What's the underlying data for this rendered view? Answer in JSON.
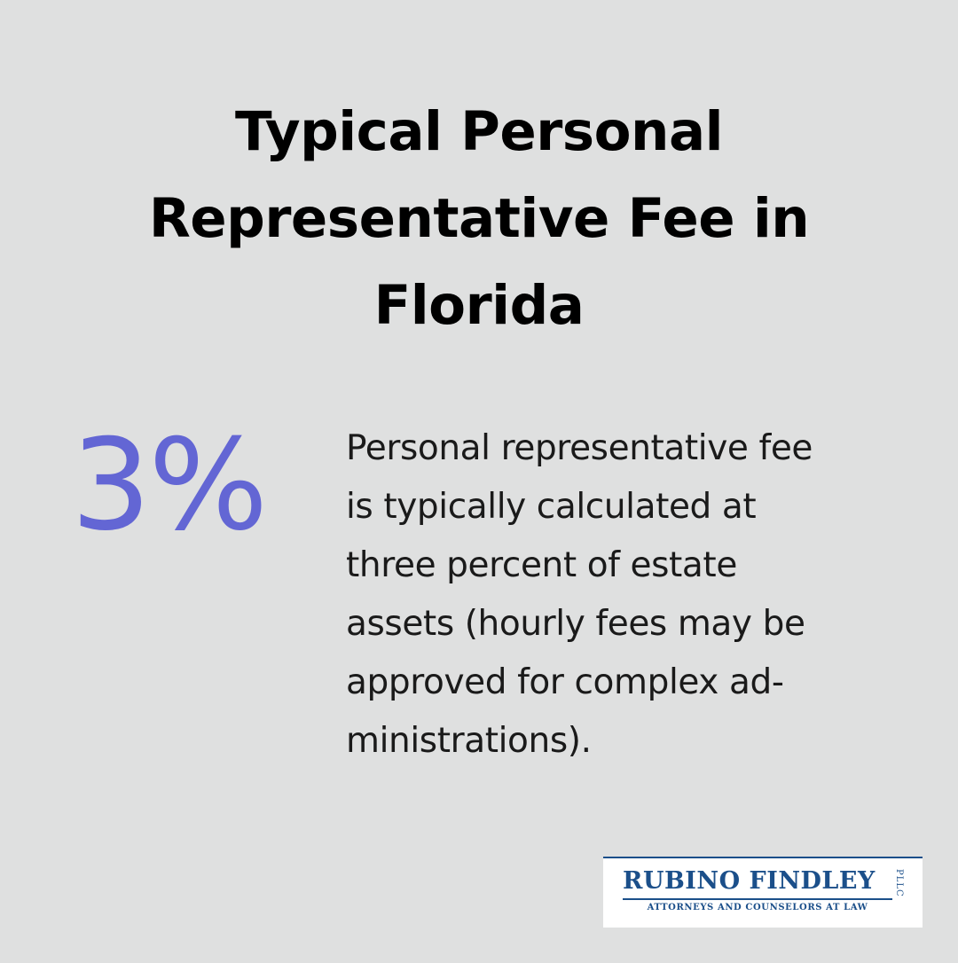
{
  "title_lines": [
    "Typical Personal",
    "Representative Fee in",
    "Florida"
  ],
  "stat": {
    "value": "3%",
    "color": "#6366d4"
  },
  "description_lines": [
    "Personal representative fee",
    "is typically calculated at",
    "three percent of estate",
    "assets (hourly fees may be",
    "approved for complex ad-",
    "ministrations)."
  ],
  "logo": {
    "name": "RUBINO FINDLEY",
    "suffix": "PLLC",
    "tagline": "ATTORNEYS AND COUNSELORS AT LAW",
    "brand_color": "#1b4f8a"
  },
  "background_color": "#dfe0e0"
}
